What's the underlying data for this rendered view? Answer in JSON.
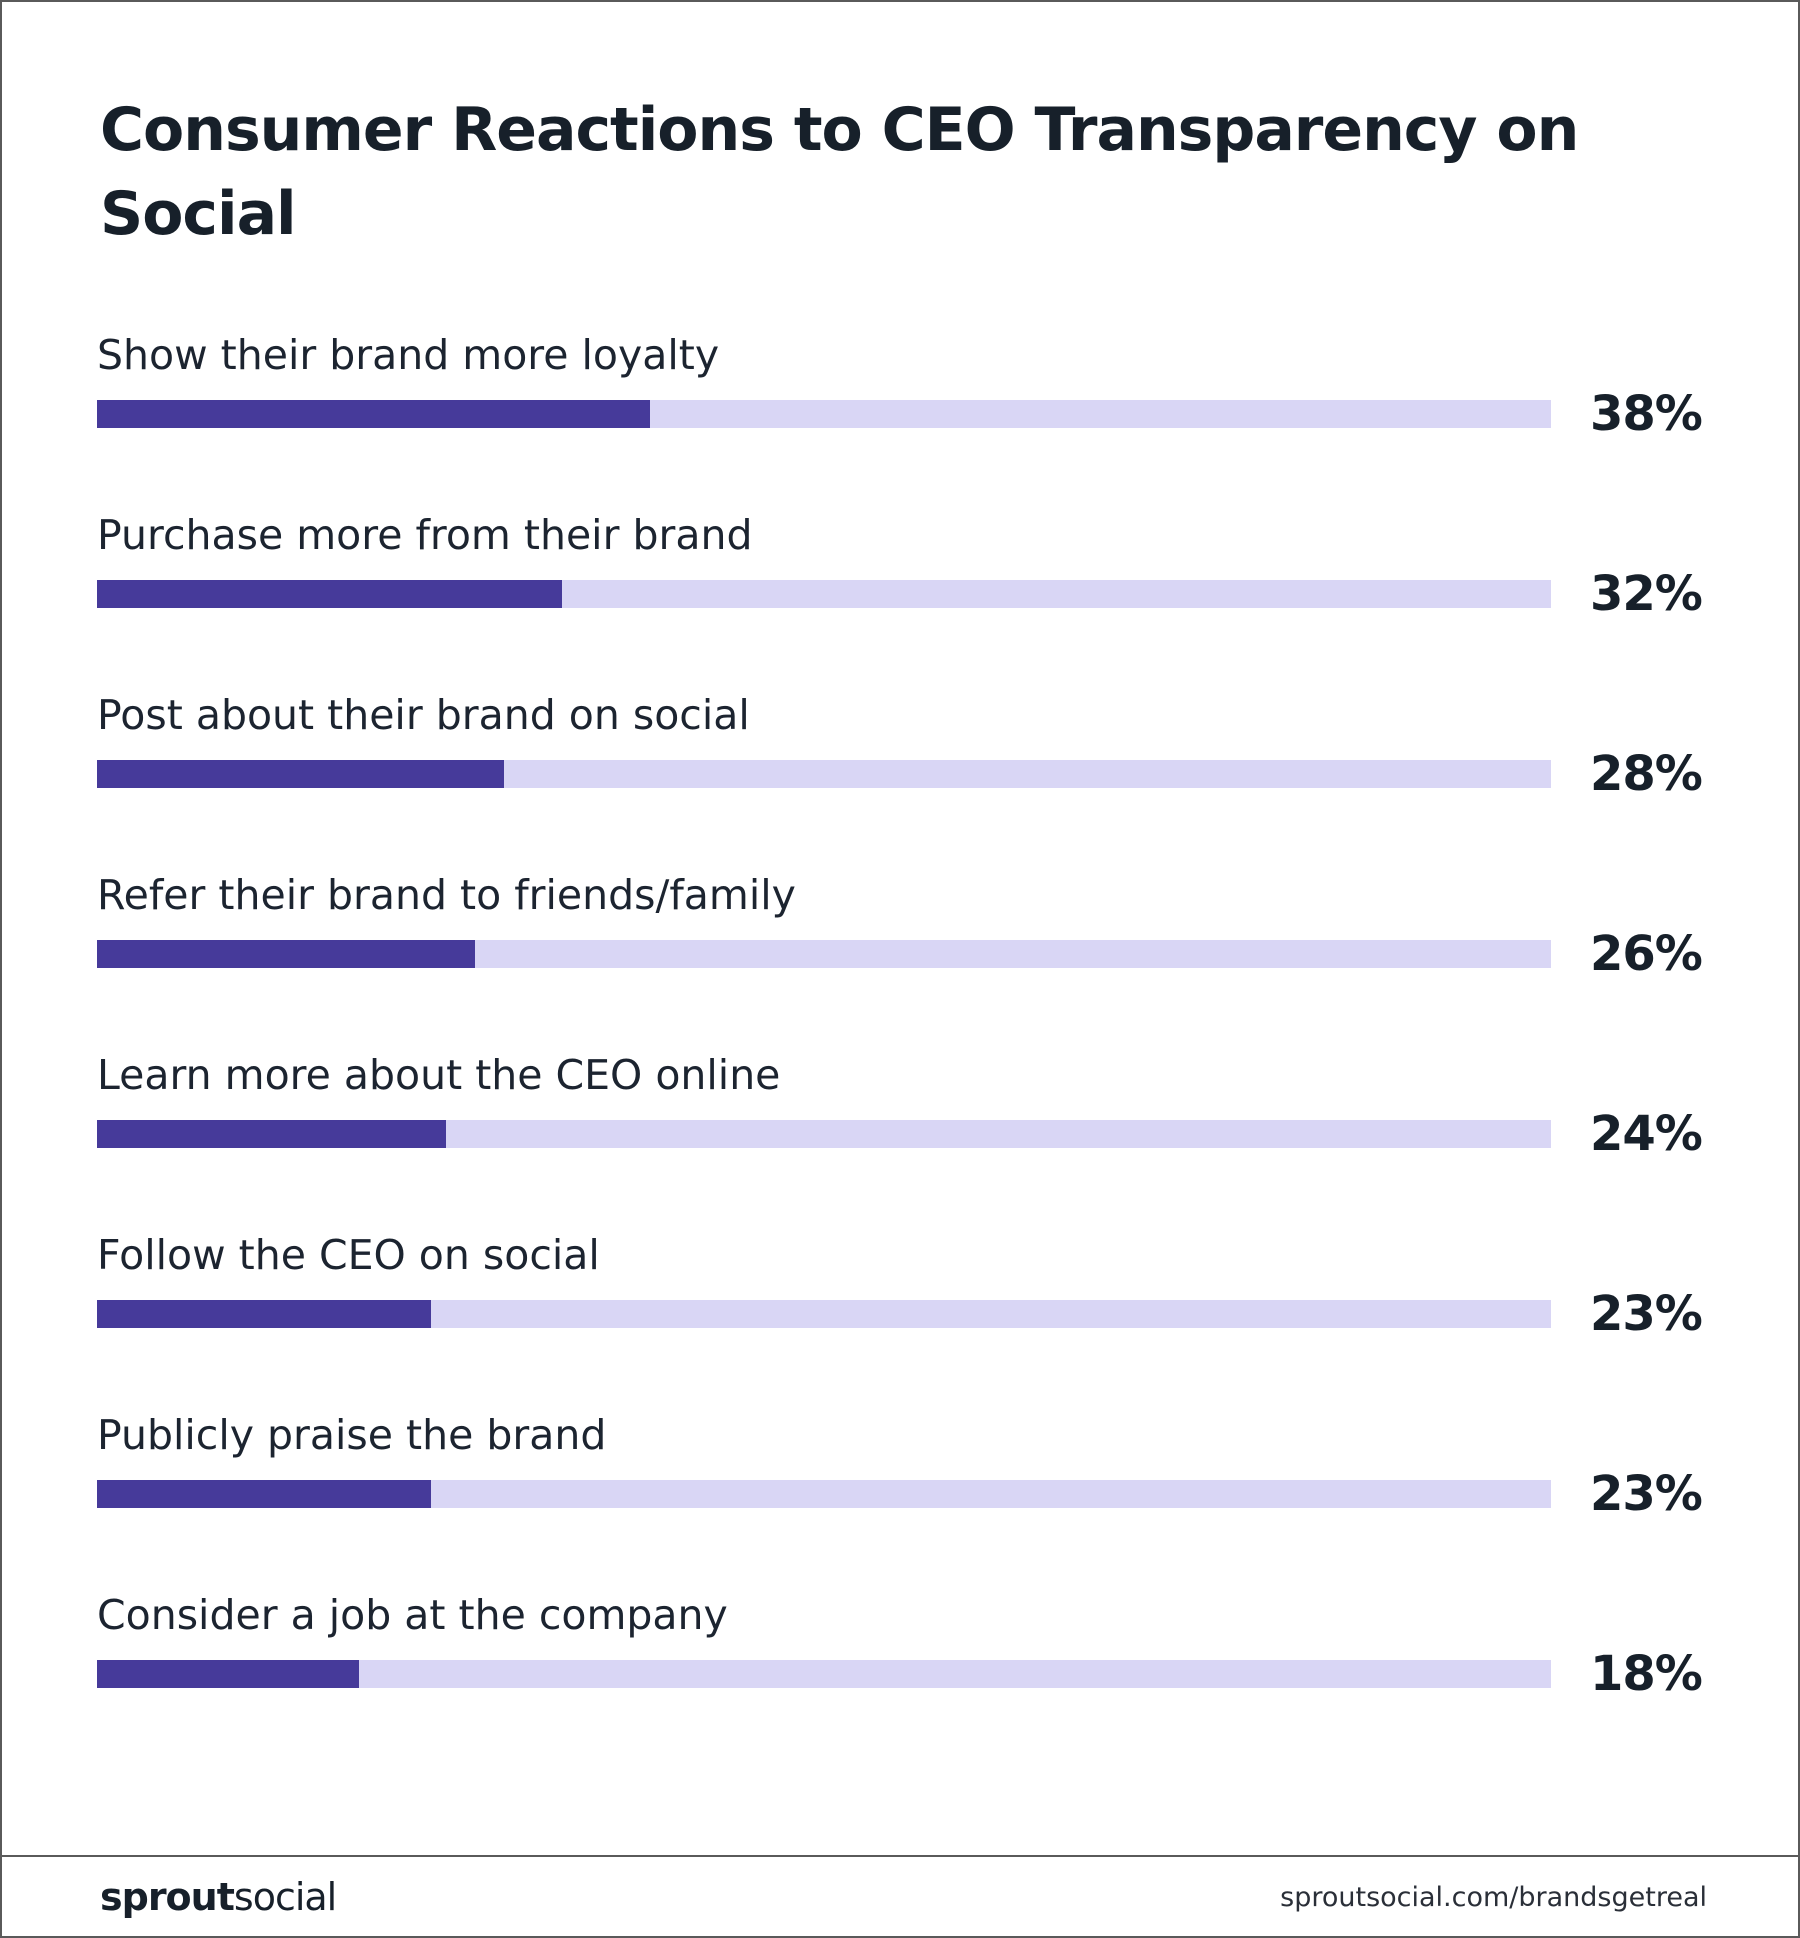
{
  "title": "Consumer Reactions to CEO Transparency on Social",
  "chart_data": {
    "type": "bar",
    "orientation": "horizontal",
    "categories": [
      "Show their brand more loyalty",
      "Purchase more from their brand",
      "Post about their brand on social",
      "Refer their brand to friends/family",
      "Learn more about the CEO online",
      "Follow the CEO on social",
      "Publicly praise the brand",
      "Consider a job at the company"
    ],
    "values": [
      38,
      32,
      28,
      26,
      24,
      23,
      23,
      18
    ],
    "value_labels": [
      "38%",
      "32%",
      "28%",
      "26%",
      "24%",
      "23%",
      "23%",
      "18%"
    ],
    "xlim": [
      0,
      100
    ],
    "grid": false,
    "colors": {
      "fill": "#463a9a",
      "track": "#d9d6f5"
    }
  },
  "footer": {
    "logo_bold": "sprout",
    "logo_light": "social",
    "url": "sproutsocial.com/brandsgetreal"
  }
}
